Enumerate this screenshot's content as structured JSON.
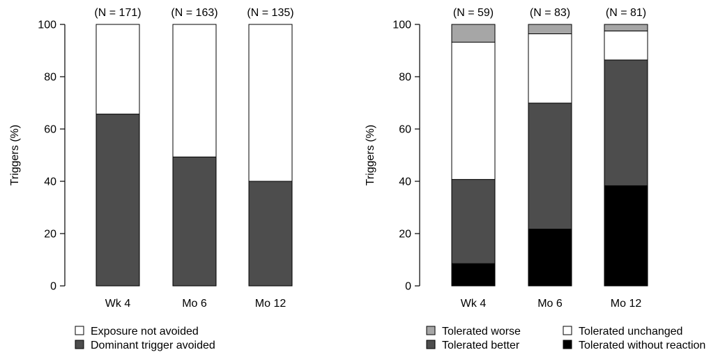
{
  "chart_data": [
    {
      "type": "bar",
      "stacked": true,
      "title": "",
      "xlabel": "",
      "ylabel": "Triggers (%)",
      "ylim": [
        0,
        100
      ],
      "yticks": [
        0,
        20,
        40,
        60,
        80,
        100
      ],
      "grid": false,
      "legend_position": "bottom-left",
      "categories": [
        "Wk 4",
        "Mo 6",
        "Mo 12"
      ],
      "n_labels": [
        "(N = 171)",
        "(N = 163)",
        "(N = 135)"
      ],
      "series": [
        {
          "name": "Dominant trigger avoided",
          "color": "#4d4d4d",
          "values": [
            65.7,
            49.3,
            40.0
          ]
        },
        {
          "name": "Exposure not avoided",
          "color": "#ffffff",
          "values": [
            34.3,
            50.7,
            60.0
          ]
        }
      ],
      "legend_order": [
        1,
        0
      ]
    },
    {
      "type": "bar",
      "stacked": true,
      "title": "",
      "xlabel": "",
      "ylabel": "Triggers (%)",
      "ylim": [
        0,
        100
      ],
      "yticks": [
        0,
        20,
        40,
        60,
        80,
        100
      ],
      "grid": false,
      "legend_position": "bottom-right",
      "categories": [
        "Wk 4",
        "Mo 6",
        "Mo 12"
      ],
      "n_labels": [
        "(N = 59)",
        "(N = 83)",
        "(N = 81)"
      ],
      "series": [
        {
          "name": "Tolerated without reaction",
          "color": "#000000",
          "values": [
            8.5,
            21.7,
            38.3
          ]
        },
        {
          "name": "Tolerated better",
          "color": "#4d4d4d",
          "values": [
            32.2,
            48.2,
            48.1
          ]
        },
        {
          "name": "Tolerated unchanged",
          "color": "#ffffff",
          "values": [
            52.5,
            26.5,
            11.1
          ]
        },
        {
          "name": "Tolerated worse",
          "color": "#a6a6a6",
          "values": [
            6.8,
            3.6,
            2.5
          ]
        }
      ],
      "legend_order": [
        3,
        2,
        1,
        0
      ]
    }
  ]
}
